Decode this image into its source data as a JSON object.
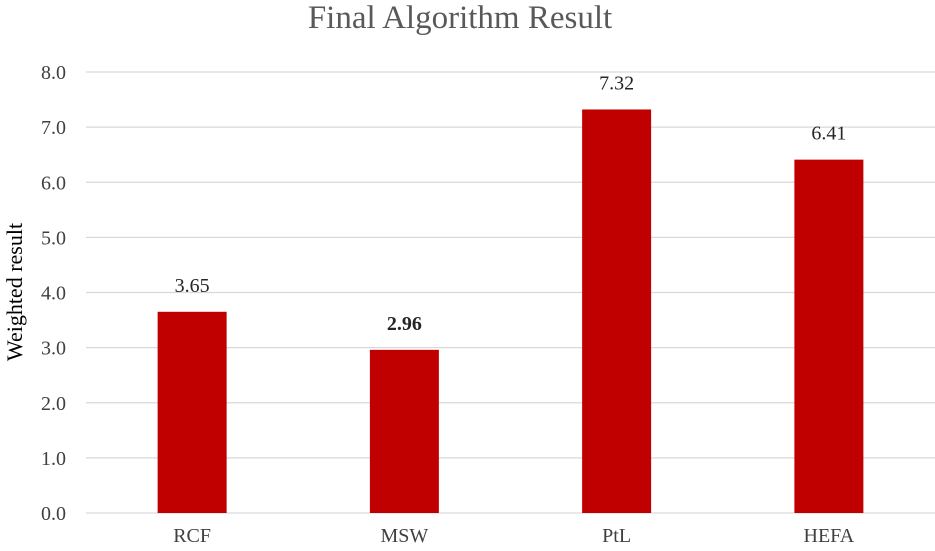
{
  "chart_data": {
    "type": "bar",
    "title": "Final Algorithm Result",
    "xlabel": "",
    "ylabel": "Weighted result",
    "categories": [
      "RCF",
      "MSW",
      "PtL",
      "HEFA"
    ],
    "values": [
      3.65,
      2.96,
      7.32,
      6.41
    ],
    "data_labels": [
      "3.65",
      "2.96",
      "7.32",
      "6.41"
    ],
    "bold_labels": [
      false,
      true,
      false,
      false
    ],
    "ylim": [
      0,
      8
    ],
    "yticks": [
      0,
      1,
      2,
      3,
      4,
      5,
      6,
      7,
      8
    ],
    "ytick_labels": [
      "0.0",
      "1.0",
      "2.0",
      "3.0",
      "4.0",
      "5.0",
      "6.0",
      "7.0",
      "8.0"
    ],
    "grid": true,
    "legend": "none",
    "bar_color": "#c00000",
    "gridline_color": "#d9d9d9"
  }
}
